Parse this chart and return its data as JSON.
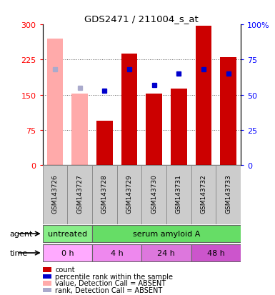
{
  "title": "GDS2471 / 211004_s_at",
  "samples": [
    "GSM143726",
    "GSM143727",
    "GSM143728",
    "GSM143729",
    "GSM143730",
    "GSM143731",
    "GSM143732",
    "GSM143733"
  ],
  "bar_values": [
    270,
    153,
    95,
    237,
    153,
    163,
    298,
    230
  ],
  "bar_colors": [
    "#ffaaaa",
    "#ffaaaa",
    "#cc0000",
    "#cc0000",
    "#cc0000",
    "#cc0000",
    "#cc0000",
    "#cc0000"
  ],
  "rank_pct": [
    68,
    55,
    53,
    68,
    57,
    65,
    68,
    65
  ],
  "rank_colors": [
    "#aaaacc",
    "#aaaacc",
    "#0000cc",
    "#0000cc",
    "#0000cc",
    "#0000cc",
    "#0000cc",
    "#0000cc"
  ],
  "ylim_left": [
    0,
    300
  ],
  "ylim_right": [
    0,
    100
  ],
  "yticks_left": [
    0,
    75,
    150,
    225,
    300
  ],
  "ytick_labels_left": [
    "0",
    "75",
    "150",
    "225",
    "300"
  ],
  "ytick_labels_right": [
    "0",
    "25",
    "50",
    "75",
    "100%"
  ],
  "agent_labels": [
    {
      "text": "untreated",
      "start": 0,
      "end": 2,
      "color": "#88ee88"
    },
    {
      "text": "serum amyloid A",
      "start": 2,
      "end": 8,
      "color": "#66dd66"
    }
  ],
  "time_labels": [
    {
      "text": "0 h",
      "start": 0,
      "end": 2,
      "color": "#ffaaff"
    },
    {
      "text": "4 h",
      "start": 2,
      "end": 4,
      "color": "#ee88ee"
    },
    {
      "text": "24 h",
      "start": 4,
      "end": 6,
      "color": "#dd77dd"
    },
    {
      "text": "48 h",
      "start": 6,
      "end": 8,
      "color": "#cc55cc"
    }
  ],
  "legend_items": [
    {
      "color": "#cc0000",
      "label": "count"
    },
    {
      "color": "#0000cc",
      "label": "percentile rank within the sample"
    },
    {
      "color": "#ffaaaa",
      "label": "value, Detection Call = ABSENT"
    },
    {
      "color": "#aaaacc",
      "label": "rank, Detection Call = ABSENT"
    }
  ],
  "bar_width": 0.65,
  "plot_bg": "#ffffff",
  "sample_box_color": "#cccccc",
  "grid_color": "#666666"
}
